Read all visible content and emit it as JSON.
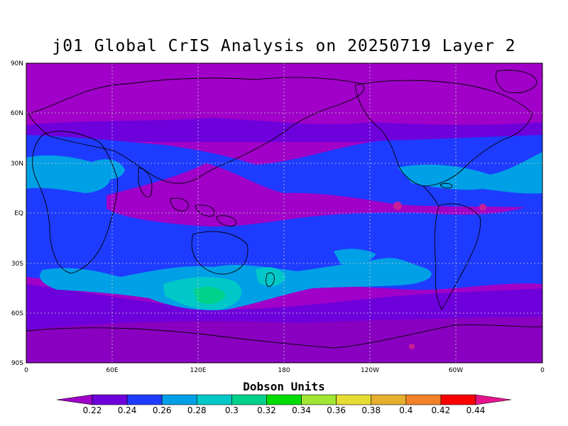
{
  "title": "j01 Global CrIS Analysis on 20250719 Layer 2",
  "colorbar_title": "Dobson Units",
  "lat_ticks": [
    "90N",
    "60N",
    "30N",
    "EQ",
    "30S",
    "60S",
    "90S"
  ],
  "lon_ticks": [
    "0",
    "60E",
    "120E",
    "180",
    "120W",
    "60W",
    "0"
  ],
  "colorbar": {
    "labels": [
      "0.22",
      "0.24",
      "0.26",
      "0.28",
      "0.3",
      "0.32",
      "0.34",
      "0.36",
      "0.38",
      "0.4",
      "0.42",
      "0.44"
    ],
    "colors": [
      "#a000c8",
      "#6e00dc",
      "#1e3cff",
      "#00a0e6",
      "#00c8c8",
      "#00d28c",
      "#00dc00",
      "#a0e632",
      "#e6dc32",
      "#e6af2d",
      "#f08228",
      "#fa0000",
      "#e6148c"
    ]
  },
  "field_colors": {
    "polar": "#a000c8",
    "violet": "#6e00dc",
    "blue": "#1e3cff",
    "cyan": "#00a0e6",
    "teal": "#00c8c8",
    "green": "#00d28c",
    "magenta": "#c81e96"
  },
  "grid_color": "#c8c8c8",
  "coast_color": "#000000"
}
